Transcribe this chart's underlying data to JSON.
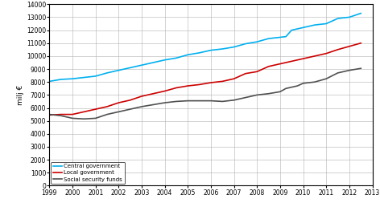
{
  "years": [
    1999,
    1999.5,
    2000,
    2000.5,
    2001,
    2001.5,
    2002,
    2002.5,
    2003,
    2003.5,
    2004,
    2004.5,
    2005,
    2005.5,
    2006,
    2006.5,
    2007,
    2007.5,
    2008,
    2008.5,
    2009,
    2009.25,
    2009.5,
    2009.75,
    2010,
    2010.5,
    2011,
    2011.5,
    2012,
    2012.5
  ],
  "central_government": [
    8050,
    8200,
    8250,
    8350,
    8450,
    8700,
    8900,
    9100,
    9300,
    9500,
    9700,
    9850,
    10100,
    10250,
    10450,
    10550,
    10700,
    10950,
    11100,
    11350,
    11450,
    11500,
    12000,
    12100,
    12200,
    12400,
    12500,
    12900,
    13000,
    13300
  ],
  "local_government": [
    5450,
    5500,
    5500,
    5700,
    5900,
    6100,
    6400,
    6600,
    6900,
    7100,
    7300,
    7550,
    7700,
    7800,
    7950,
    8050,
    8250,
    8650,
    8800,
    9200,
    9400,
    9500,
    9600,
    9700,
    9800,
    10000,
    10200,
    10500,
    10750,
    11000
  ],
  "social_security": [
    5500,
    5400,
    5200,
    5150,
    5200,
    5500,
    5700,
    5900,
    6100,
    6250,
    6400,
    6500,
    6550,
    6550,
    6550,
    6500,
    6600,
    6800,
    7000,
    7100,
    7250,
    7500,
    7600,
    7700,
    7900,
    8000,
    8250,
    8700,
    8900,
    9050
  ],
  "colors": {
    "central": "#00b0f0",
    "local": "#cc0000",
    "social": "#505050"
  },
  "ylabel": "milj €",
  "xlim": [
    1999,
    2013
  ],
  "ylim": [
    0,
    14000
  ],
  "yticks": [
    0,
    1000,
    2000,
    3000,
    4000,
    5000,
    6000,
    7000,
    8000,
    9000,
    10000,
    11000,
    12000,
    13000,
    14000
  ],
  "xticks": [
    1999,
    2000,
    2001,
    2002,
    2003,
    2004,
    2005,
    2006,
    2007,
    2008,
    2009,
    2010,
    2011,
    2012,
    2013
  ],
  "legend": [
    "Central government",
    "Local government",
    "Social security funds"
  ],
  "background_color": "#ffffff",
  "grid_color": "#b0b0b0"
}
